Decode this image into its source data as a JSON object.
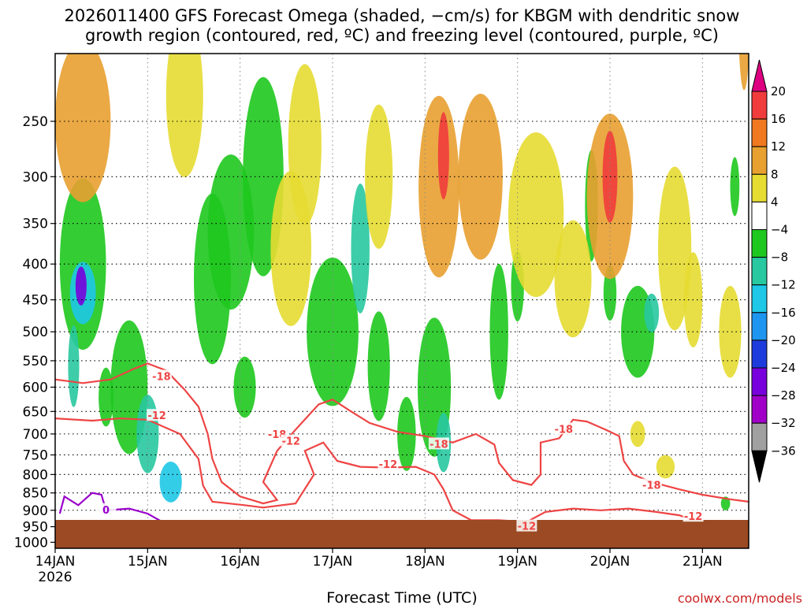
{
  "chart_data": {
    "type": "heatmap",
    "title_line1": "2026011400 GFS Forecast Omega (shaded, −cm/s) for KBGM with dendritic snow",
    "title_line2": "growth region (contoured, red, ºC) and freezing level (contoured, purple, ºC)",
    "xlabel": "Forecast Time (UTC)",
    "x_ticks": [
      "14JAN",
      "15JAN",
      "16JAN",
      "17JAN",
      "18JAN",
      "19JAN",
      "20JAN",
      "21JAN"
    ],
    "x_year": "2026",
    "xlim_days": [
      0,
      7.5
    ],
    "y_ticks": [
      250,
      300,
      350,
      400,
      450,
      500,
      550,
      600,
      650,
      700,
      750,
      800,
      850,
      900,
      950,
      1000
    ],
    "ylim_hpa": [
      200,
      1020
    ],
    "grid": true,
    "colorbar": {
      "ticks": [
        "20",
        "16",
        "12",
        "8",
        "4",
        "−4",
        "−8",
        "−12",
        "−16",
        "−20",
        "−24",
        "−28",
        "−32",
        "−36"
      ],
      "colors": [
        "#dd0080",
        "#f03c3c",
        "#f07820",
        "#e8a030",
        "#e6dc32",
        "#ffffff",
        "#1ec81e",
        "#28c8a0",
        "#1ec8e6",
        "#1e96f0",
        "#1e3cdc",
        "#7800dc",
        "#a000c8",
        "#a0a0a0",
        "#000000"
      ]
    },
    "contour_labels": [
      {
        "text": "-18",
        "day": 1.15,
        "p": 580
      },
      {
        "text": "-12",
        "day": 1.1,
        "p": 660
      },
      {
        "text": "0",
        "day": 0.55,
        "p": 900
      },
      {
        "text": "-18",
        "day": 2.4,
        "p": 702
      },
      {
        "text": "-12",
        "day": 2.55,
        "p": 718
      },
      {
        "text": "-12",
        "day": 3.6,
        "p": 775
      },
      {
        "text": "-18",
        "day": 4.15,
        "p": 725
      },
      {
        "text": "-18",
        "day": 5.5,
        "p": 690
      },
      {
        "text": "-12",
        "day": 5.1,
        "p": 950
      },
      {
        "text": "-18",
        "day": 6.45,
        "p": 830
      },
      {
        "text": "-12",
        "day": 6.9,
        "p": 920
      }
    ]
  },
  "credit": "coolwx.com/models",
  "colors": {
    "dgz": "#ee4444",
    "freezing": "#9900cc",
    "ground": "#9b4a23"
  }
}
